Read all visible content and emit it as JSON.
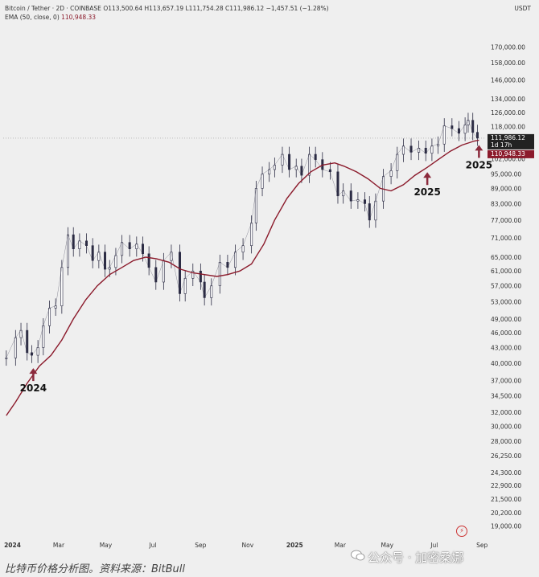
{
  "header": {
    "symbol_line": "Bitcoin / Tether · 2D · COINBASE",
    "ohlc": "O113,500.64 H113,657.19 L111,754.28 C111,986.12 −1,457.51 (−1.28%)",
    "ema_label": "EMA (50, close, 0)",
    "ema_value": "110,948.33"
  },
  "currency": "USDT",
  "caption": "比特币价格分析图。资料来源：BitBull",
  "watermark": "公众号 · 加密桑娜",
  "colors": {
    "candle": "#2c2c44",
    "ema": "#8b1a2b",
    "background": "#efefef",
    "annotation_arrow": "#8b2a3c",
    "last_price_bg": "#222222",
    "ema_badge_bg": "#8b1a2b"
  },
  "chart_data": {
    "type": "line",
    "scale": "log",
    "x_ticks": [
      "2024",
      "Mar",
      "May",
      "Jul",
      "Sep",
      "Nov",
      "2025",
      "Mar",
      "May",
      "Jul",
      "Sep"
    ],
    "y_ticks": [
      19000,
      20200,
      21500,
      22900,
      24300,
      26250,
      28000,
      30000,
      32000,
      34500,
      37000,
      40000,
      43000,
      46000,
      49000,
      53000,
      57000,
      61000,
      65000,
      71000,
      77000,
      83000,
      89000,
      95000,
      102000,
      110000,
      118000,
      126000,
      134000,
      146000,
      158000,
      170000
    ],
    "y_tick_labels": [
      "19,000.00",
      "20,200.00",
      "21,500.00",
      "22,900.00",
      "24,300.00",
      "26,250.00",
      "28,000.00",
      "30,000.00",
      "32,000.00",
      "34,500.00",
      "37,000.00",
      "40,000.00",
      "43,000.00",
      "46,000.00",
      "49,000.00",
      "53,000.00",
      "57,000.00",
      "61,000.00",
      "65,000.00",
      "71,000.00",
      "77,000.00",
      "83,000.00",
      "89,000.00",
      "95,000.00",
      "102,000.00",
      "110,000.00",
      "118,000.00",
      "126,000.00",
      "134,000.00",
      "146,000.00",
      "158,000.00",
      "170,000.00"
    ],
    "series": [
      {
        "x": [
          "2023-12-24",
          "2024-01-05",
          "2024-01-12",
          "2024-01-20",
          "2024-01-26",
          "2024-02-03",
          "2024-02-10",
          "2024-02-18",
          "2024-02-26",
          "2024-03-05",
          "2024-03-13",
          "2024-03-20",
          "2024-03-28",
          "2024-04-06",
          "2024-04-14",
          "2024-04-22",
          "2024-04-30",
          "2024-05-06",
          "2024-05-14",
          "2024-05-22",
          "2024-06-01",
          "2024-06-10",
          "2024-06-18",
          "2024-06-26",
          "2024-07-05",
          "2024-07-15",
          "2024-07-25",
          "2024-08-05",
          "2024-08-12",
          "2024-08-22",
          "2024-09-01",
          "2024-09-06",
          "2024-09-15",
          "2024-09-26",
          "2024-10-06",
          "2024-10-16",
          "2024-10-26",
          "2024-11-06",
          "2024-11-12",
          "2024-11-20",
          "2024-11-29",
          "2024-12-06",
          "2024-12-16",
          "2024-12-25",
          "2025-01-03",
          "2025-01-10",
          "2025-01-20",
          "2025-01-28",
          "2025-02-06",
          "2025-02-16",
          "2025-02-26",
          "2025-03-05",
          "2025-03-15",
          "2025-03-24",
          "2025-04-02",
          "2025-04-08",
          "2025-04-16",
          "2025-04-26",
          "2025-05-06",
          "2025-05-14",
          "2025-05-22",
          "2025-06-01",
          "2025-06-11",
          "2025-06-20",
          "2025-06-28",
          "2025-07-06",
          "2025-07-14",
          "2025-07-24",
          "2025-08-02",
          "2025-08-10",
          "2025-08-14",
          "2025-08-20",
          "2025-08-26"
        ],
        "values": [
          41000,
          45000,
          46500,
          42000,
          41500,
          43000,
          47500,
          51500,
          52000,
          62000,
          72000,
          67500,
          70000,
          68500,
          64000,
          66500,
          61500,
          62000,
          65500,
          69500,
          67500,
          69000,
          66000,
          62000,
          58000,
          64000,
          66500,
          55000,
          59000,
          61000,
          58000,
          54000,
          57000,
          63500,
          62000,
          66500,
          68500,
          76000,
          89000,
          95000,
          97000,
          99000,
          104000,
          97000,
          98500,
          94500,
          104000,
          101500,
          97000,
          96000,
          86000,
          88000,
          84000,
          84500,
          83000,
          77000,
          84000,
          94000,
          96500,
          104000,
          108000,
          105000,
          107000,
          104500,
          108000,
          109000,
          118500,
          117000,
          114500,
          119000,
          121500,
          115000,
          112000
        ]
      },
      {
        "name": "EMA (50, close, 0)",
        "x": [
          "2023-12-24",
          "2024-01-05",
          "2024-01-20",
          "2024-02-05",
          "2024-02-20",
          "2024-03-05",
          "2024-03-20",
          "2024-04-05",
          "2024-04-20",
          "2024-05-06",
          "2024-05-22",
          "2024-06-06",
          "2024-06-22",
          "2024-07-06",
          "2024-07-22",
          "2024-08-06",
          "2024-08-22",
          "2024-09-06",
          "2024-09-22",
          "2024-10-06",
          "2024-10-22",
          "2024-11-06",
          "2024-11-22",
          "2024-12-06",
          "2024-12-22",
          "2025-01-06",
          "2025-01-22",
          "2025-02-06",
          "2025-02-22",
          "2025-03-06",
          "2025-03-22",
          "2025-04-06",
          "2025-04-22",
          "2025-05-06",
          "2025-05-22",
          "2025-06-06",
          "2025-06-22",
          "2025-07-06",
          "2025-07-22",
          "2025-08-06",
          "2025-08-22",
          "2025-08-28"
        ],
        "values": [
          31500,
          33500,
          36500,
          39500,
          41500,
          44500,
          49000,
          53500,
          57000,
          60000,
          62000,
          64000,
          65000,
          64500,
          63500,
          61500,
          60500,
          60000,
          59500,
          60000,
          61000,
          63000,
          69000,
          77000,
          85000,
          91000,
          96000,
          99000,
          100000,
          98500,
          96000,
          93000,
          89000,
          88000,
          90500,
          94500,
          98000,
          101500,
          105500,
          108500,
          110500,
          110948.33
        ]
      }
    ],
    "annotations": [
      {
        "label": "2024",
        "x": "2024-01-28",
        "value": 40000
      },
      {
        "label": "2025",
        "x": "2025-06-22",
        "value": 98000
      },
      {
        "label": "2025",
        "x": "2025-08-28",
        "value": 110948.33
      }
    ],
    "last_price_label": "111,986.12",
    "countdown_label": "1d 17h",
    "ema_badge_label": "110,948.33",
    "reference_line_value": 111986.12,
    "ylim": [
      18500,
      190000
    ]
  }
}
